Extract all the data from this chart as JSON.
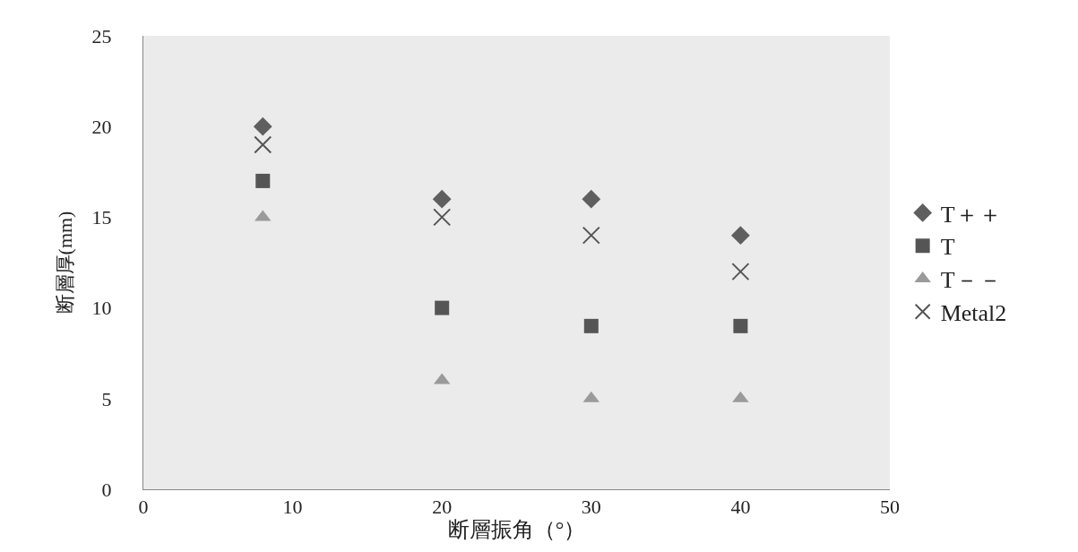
{
  "chart_data": {
    "type": "scatter",
    "xlabel": "断層振角（°）",
    "ylabel": "断層厚(mm)",
    "x": [
      8,
      20,
      30,
      40
    ],
    "series": [
      {
        "name": "T＋＋",
        "color": "#5f5f5f",
        "marker": "diamond",
        "values": [
          20,
          16,
          16,
          14
        ]
      },
      {
        "name": "T",
        "color": "#555555",
        "marker": "square",
        "values": [
          17,
          10,
          9,
          9
        ]
      },
      {
        "name": "T－－",
        "color": "#9a9a9a",
        "marker": "triangle",
        "values": [
          15,
          6,
          5,
          5
        ]
      },
      {
        "name": "Metal2",
        "color": "#555555",
        "marker": "cross",
        "values": [
          19,
          15,
          14,
          12
        ]
      }
    ],
    "xlim": [
      0,
      50
    ],
    "xticks": [
      0,
      10,
      20,
      30,
      40,
      50
    ],
    "ylim": [
      0,
      25
    ],
    "yticks": [
      0,
      5,
      10,
      15,
      20,
      25
    ],
    "grid": false,
    "legend": "right"
  }
}
